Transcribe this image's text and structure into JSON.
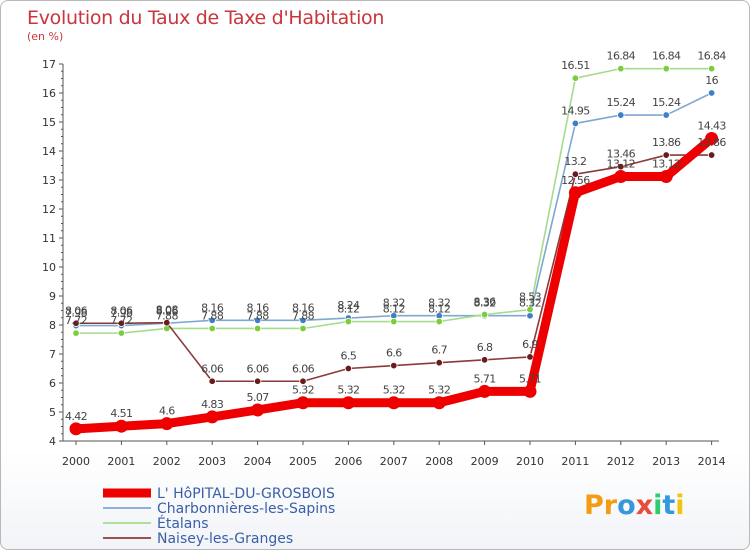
{
  "title": "Evolution du Taux de Taxe d'Habitation",
  "subtitle": "(en %)",
  "logo": {
    "text": "Proxiti",
    "letters": [
      {
        "ch": "P",
        "color": "#f39c12"
      },
      {
        "ch": "r",
        "color": "#f39c12"
      },
      {
        "ch": "o",
        "color": "#3498db"
      },
      {
        "ch": "x",
        "color": "#e74c3c"
      },
      {
        "ch": "i",
        "color": "#2ecc71"
      },
      {
        "ch": "t",
        "color": "#3498db"
      },
      {
        "ch": "i",
        "color": "#f1c40f"
      }
    ]
  },
  "chart_data": {
    "type": "line",
    "title": "Evolution du Taux de Taxe d'Habitation",
    "ylabel": "(en %)",
    "xlabel": "",
    "x": [
      "2000",
      "2001",
      "2002",
      "2003",
      "2004",
      "2005",
      "2006",
      "2007",
      "2008",
      "2009",
      "2010",
      "2011",
      "2012",
      "2013",
      "2014"
    ],
    "ylim": [
      4,
      17
    ],
    "yticks": [
      4,
      5,
      6,
      7,
      8,
      9,
      10,
      11,
      12,
      13,
      14,
      15,
      16,
      17
    ],
    "grid": false,
    "legend_position": "bottom-left",
    "series": [
      {
        "name": "L' HôPITAL-DU-GROSBOIS",
        "color": "#ee0000",
        "marker_color": "#ee0000",
        "values": [
          4.42,
          4.51,
          4.6,
          4.83,
          5.07,
          5.32,
          5.32,
          5.32,
          5.32,
          5.71,
          5.71,
          12.56,
          13.12,
          13.12,
          14.43
        ],
        "labels": [
          "4.42",
          "4.51",
          "4.6",
          "4.83",
          "5.07",
          "5.32",
          "5.32",
          "5.32",
          "5.32",
          "5.71",
          "5.71",
          "12.56",
          "13.12",
          "13.12",
          "14.43"
        ]
      },
      {
        "name": "Charbonnières-les-Sapins",
        "color": "#7ea8cf",
        "marker_color": "#3d7fc9",
        "values": [
          7.98,
          7.98,
          8.06,
          8.16,
          8.16,
          8.16,
          8.24,
          8.32,
          8.32,
          8.32,
          8.32,
          14.95,
          15.24,
          15.24,
          16
        ],
        "labels": [
          "7.98",
          "7.98",
          "8.06",
          "8.16",
          "8.16",
          "8.16",
          "8.24",
          "8.32",
          "8.32",
          "8.32",
          "8.32",
          "14.95",
          "15.24",
          "15.24",
          "16"
        ]
      },
      {
        "name": "Étalans",
        "color": "#a4dc8c",
        "marker_color": "#7ccd3c",
        "values": [
          7.72,
          7.72,
          7.88,
          7.88,
          7.88,
          7.88,
          8.12,
          8.12,
          8.12,
          8.36,
          8.53,
          16.51,
          16.84,
          16.84,
          16.84
        ],
        "labels": [
          "7.72",
          "7.72",
          "7.88",
          "7.88",
          "7.88",
          "7.88",
          "8.12",
          "8.12",
          "8.12",
          "8.36",
          "8.53",
          "16.51",
          "16.84",
          "16.84",
          "16.84"
        ]
      },
      {
        "name": "Naisey-les-Granges",
        "color": "#8b3a3a",
        "marker_color": "#6a1c1c",
        "values": [
          8.06,
          8.06,
          8.08,
          6.06,
          6.06,
          6.06,
          6.5,
          6.6,
          6.7,
          6.8,
          6.9,
          13.2,
          13.46,
          13.86,
          13.86
        ],
        "labels": [
          "8.06",
          "8.06",
          "8.08",
          "6.06",
          "6.06",
          "6.06",
          "6.5",
          "6.6",
          "6.7",
          "6.8",
          "6.9",
          "13.2",
          "13.46",
          "13.86",
          "13.86"
        ]
      }
    ]
  }
}
